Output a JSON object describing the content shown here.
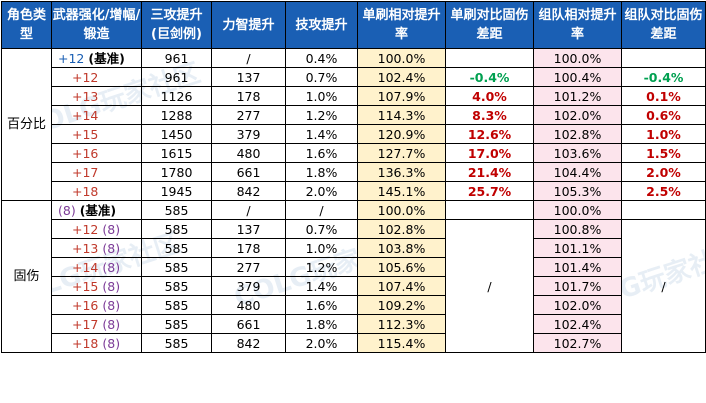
{
  "headers": {
    "c1": "角色类型",
    "c2": "武器强化/增幅/锻造",
    "c3": "三攻提升(巨剑例)",
    "c4": "力智提升",
    "c5": "技攻提升",
    "c6": "单刷相对提升率",
    "c7": "单刷对比固伤差距",
    "c8": "组队相对提升率",
    "c9": "组队对比固伤差距"
  },
  "sections": {
    "pct": {
      "label": "百分比",
      "rows": [
        {
          "level": "+12",
          "suffix": "(基准)",
          "tri": "961",
          "str": "/",
          "skill": "0.4%",
          "solo": "100.0%",
          "solo_gap": "",
          "team": "100.0%",
          "team_gap": ""
        },
        {
          "level": "+12",
          "suffix": "",
          "tri": "961",
          "str": "137",
          "skill": "0.7%",
          "solo": "102.4%",
          "solo_gap": "-0.4%",
          "team": "100.4%",
          "team_gap": "-0.4%"
        },
        {
          "level": "+13",
          "suffix": "",
          "tri": "1126",
          "str": "178",
          "skill": "1.0%",
          "solo": "107.9%",
          "solo_gap": "4.0%",
          "team": "101.2%",
          "team_gap": "0.1%"
        },
        {
          "level": "+14",
          "suffix": "",
          "tri": "1288",
          "str": "277",
          "skill": "1.2%",
          "solo": "114.3%",
          "solo_gap": "8.3%",
          "team": "102.0%",
          "team_gap": "0.6%"
        },
        {
          "level": "+15",
          "suffix": "",
          "tri": "1450",
          "str": "379",
          "skill": "1.4%",
          "solo": "120.9%",
          "solo_gap": "12.6%",
          "team": "102.8%",
          "team_gap": "1.0%"
        },
        {
          "level": "+16",
          "suffix": "",
          "tri": "1615",
          "str": "480",
          "skill": "1.6%",
          "solo": "127.7%",
          "solo_gap": "17.0%",
          "team": "103.6%",
          "team_gap": "1.5%"
        },
        {
          "level": "+17",
          "suffix": "",
          "tri": "1780",
          "str": "661",
          "skill": "1.8%",
          "solo": "136.3%",
          "solo_gap": "21.4%",
          "team": "104.4%",
          "team_gap": "2.0%"
        },
        {
          "level": "+18",
          "suffix": "",
          "tri": "1945",
          "str": "842",
          "skill": "2.0%",
          "solo": "145.1%",
          "solo_gap": "25.7%",
          "team": "105.3%",
          "team_gap": "2.5%"
        }
      ]
    },
    "fixed": {
      "label": "固伤",
      "base": {
        "level": "(8)",
        "suffix": "(基准)",
        "tri": "585",
        "str": "/",
        "skill": "/",
        "solo": "100.0%",
        "team": "100.0%"
      },
      "rows": [
        {
          "level": "+12",
          "paren": "(8)",
          "tri": "585",
          "str": "137",
          "skill": "0.7%",
          "solo": "102.8%",
          "team": "100.8%"
        },
        {
          "level": "+13",
          "paren": "(8)",
          "tri": "585",
          "str": "178",
          "skill": "1.0%",
          "solo": "103.8%",
          "team": "101.1%"
        },
        {
          "level": "+14",
          "paren": "(8)",
          "tri": "585",
          "str": "277",
          "skill": "1.2%",
          "solo": "105.6%",
          "team": "101.4%"
        },
        {
          "level": "+15",
          "paren": "(8)",
          "tri": "585",
          "str": "379",
          "skill": "1.4%",
          "solo": "107.4%",
          "team": "101.7%"
        },
        {
          "level": "+16",
          "paren": "(8)",
          "tri": "585",
          "str": "480",
          "skill": "1.6%",
          "solo": "109.2%",
          "team": "102.0%"
        },
        {
          "level": "+17",
          "paren": "(8)",
          "tri": "585",
          "str": "661",
          "skill": "1.8%",
          "solo": "112.3%",
          "team": "102.4%"
        },
        {
          "level": "+18",
          "paren": "(8)",
          "tri": "585",
          "str": "842",
          "skill": "2.0%",
          "solo": "115.4%",
          "team": "102.7%"
        }
      ],
      "solo_gap": "/",
      "team_gap": "/"
    }
  },
  "watermark": "COLG玩家社区"
}
